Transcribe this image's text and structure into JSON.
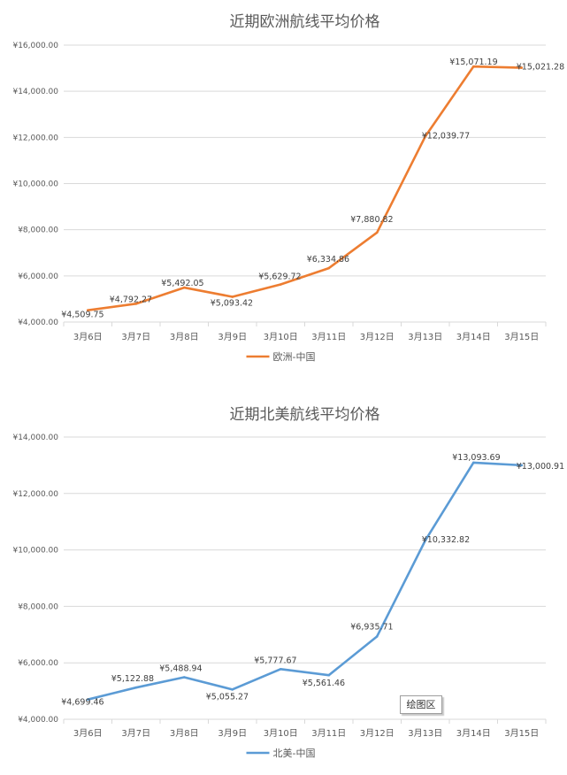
{
  "chart_data": [
    {
      "type": "line",
      "title": "近期欧洲航线平均价格",
      "categories": [
        "3月6日",
        "3月7日",
        "3月8日",
        "3月9日",
        "3月10日",
        "3月11日",
        "3月12日",
        "3月13日",
        "3月14日",
        "3月15日"
      ],
      "series": [
        {
          "name": "欧洲-中国",
          "values": [
            4509.75,
            4792.27,
            5492.05,
            5093.42,
            5629.72,
            6334.86,
            7880.82,
            12039.77,
            15071.19,
            15021.28
          ],
          "labels": [
            "¥4,509.75",
            "¥4,792.27",
            "¥5,492.05",
            "¥5,093.42",
            "¥5,629.72",
            "¥6,334.86",
            "¥7,880.82",
            "¥12,039.77",
            "¥15,071.19",
            "¥15,021.28"
          ],
          "color": "#ED7D31"
        }
      ],
      "ylim": [
        4000,
        16000
      ],
      "yticks": [
        4000,
        6000,
        8000,
        10000,
        12000,
        14000,
        16000
      ],
      "ytick_labels": [
        "¥4,000.00",
        "¥6,000.00",
        "¥8,000.00",
        "¥10,000.00",
        "¥12,000.00",
        "¥14,000.00",
        "¥16,000.00"
      ],
      "legend": "bottom",
      "grid": true
    },
    {
      "type": "line",
      "title": "近期北美航线平均价格",
      "categories": [
        "3月6日",
        "3月7日",
        "3月8日",
        "3月9日",
        "3月10日",
        "3月11日",
        "3月12日",
        "3月13日",
        "3月14日",
        "3月15日"
      ],
      "series": [
        {
          "name": "北美-中国",
          "values": [
            4699.46,
            5122.88,
            5488.94,
            5055.27,
            5777.67,
            5561.46,
            6935.71,
            10332.82,
            13093.69,
            13000.91
          ],
          "labels": [
            "¥4,699.46",
            "¥5,122.88",
            "¥5,488.94",
            "¥5,055.27",
            "¥5,777.67",
            "¥5,561.46",
            "¥6,935.71",
            "¥10,332.82",
            "¥13,093.69",
            "¥13,000.91"
          ],
          "color": "#5B9BD5"
        }
      ],
      "ylim": [
        4000,
        14000
      ],
      "yticks": [
        4000,
        6000,
        8000,
        10000,
        12000,
        14000
      ],
      "ytick_labels": [
        "¥4,000.00",
        "¥6,000.00",
        "¥8,000.00",
        "¥10,000.00",
        "¥12,000.00",
        "¥14,000.00"
      ],
      "legend": "bottom",
      "grid": true
    }
  ],
  "tooltip": {
    "text": "绘图区"
  }
}
